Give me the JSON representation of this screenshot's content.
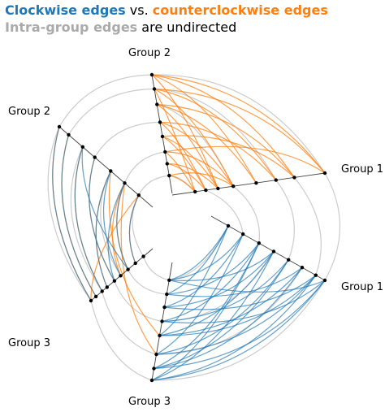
{
  "title": {
    "line1": {
      "clockwise": "Clockwise edges",
      "vs": "vs.",
      "counter": "counterclockwise edges"
    },
    "line2": {
      "intra": "Intra-group edges",
      "rest": "are undirected"
    }
  },
  "colors": {
    "clockwise": "#1f77b4",
    "counterclockwise": "#ff7f0e",
    "intra": "#aaaaaa",
    "axis": "#000000"
  },
  "chart_data": {
    "type": "hive plot",
    "axes": [
      {
        "id": "g1a",
        "label": "Group 1"
      },
      {
        "id": "g1b",
        "label": "Group 1"
      },
      {
        "id": "g2a",
        "label": "Group 2"
      },
      {
        "id": "g2b",
        "label": "Group 2"
      },
      {
        "id": "g3a",
        "label": "Group 3"
      },
      {
        "id": "g3b",
        "label": "Group 3"
      }
    ],
    "nodes_per_axis": {
      "g1a": [
        0.15,
        0.22,
        0.3,
        0.4,
        0.55,
        0.68,
        0.8,
        1.0
      ],
      "g1b": [
        0.15,
        0.28,
        0.42,
        0.55,
        0.68,
        0.8,
        0.92,
        1.0
      ],
      "g2a": [
        0.15,
        0.25,
        0.35,
        0.48,
        0.6,
        0.75,
        0.88,
        1.0
      ],
      "g2b": [
        0.15,
        0.3,
        0.45,
        0.62,
        0.75,
        0.9,
        1.0
      ],
      "g3a": [
        0.15,
        0.28,
        0.4,
        0.52,
        0.62,
        0.74,
        0.82,
        0.92,
        1.0
      ],
      "g3b": [
        0.15,
        0.27,
        0.38,
        0.5,
        0.62,
        0.78,
        0.9,
        1.0
      ]
    },
    "edges": {
      "counterclockwise": [
        [
          "g2a",
          7,
          "g1a",
          7
        ],
        [
          "g2a",
          7,
          "g1a",
          6
        ],
        [
          "g2a",
          6,
          "g1a",
          7
        ],
        [
          "g2a",
          6,
          "g1a",
          5
        ],
        [
          "g2a",
          5,
          "g1a",
          6
        ],
        [
          "g2a",
          5,
          "g1a",
          4
        ],
        [
          "g2a",
          4,
          "g1a",
          3
        ],
        [
          "g2a",
          4,
          "g1a",
          5
        ],
        [
          "g2a",
          3,
          "g1a",
          2
        ],
        [
          "g2a",
          3,
          "g1a",
          1
        ],
        [
          "g2a",
          2,
          "g1a",
          0
        ],
        [
          "g2a",
          1,
          "g1a",
          1
        ],
        [
          "g2a",
          0,
          "g1a",
          0
        ],
        [
          "g2a",
          7,
          "g1a",
          4
        ],
        [
          "g2a",
          6,
          "g1a",
          3
        ],
        [
          "g2a",
          5,
          "g1a",
          2
        ],
        [
          "g2a",
          4,
          "g1a",
          1
        ],
        [
          "g2a",
          2,
          "g1a",
          3
        ],
        [
          "g2a",
          1,
          "g1a",
          2
        ],
        [
          "g2a",
          0,
          "g1a",
          3
        ],
        [
          "g2a",
          7,
          "g1a",
          2
        ],
        [
          "g2a",
          3,
          "g1a",
          6
        ],
        [
          "g2a",
          6,
          "g1a",
          0
        ],
        [
          "g2a",
          2,
          "g1a",
          7
        ],
        [
          "g3a",
          8,
          "g2b",
          6
        ],
        [
          "g3a",
          7,
          "g2b",
          5
        ],
        [
          "g3a",
          6,
          "g2b",
          4
        ],
        [
          "g3a",
          5,
          "g2b",
          2
        ],
        [
          "g3a",
          4,
          "g2b",
          3
        ],
        [
          "g3a",
          3,
          "g2b",
          1
        ],
        [
          "g3a",
          8,
          "g2b",
          0
        ],
        [
          "g3a",
          2,
          "g2b",
          1
        ],
        [
          "g3b",
          4,
          "g2b",
          2
        ],
        [
          "g3a",
          1,
          "g2b",
          0
        ],
        [
          "g3b",
          5,
          "g2b",
          1
        ]
      ],
      "clockwise": [
        [
          "g1b",
          7,
          "g3b",
          7
        ],
        [
          "g1b",
          7,
          "g3b",
          6
        ],
        [
          "g1b",
          6,
          "g3b",
          7
        ],
        [
          "g1b",
          6,
          "g3b",
          5
        ],
        [
          "g1b",
          5,
          "g3b",
          6
        ],
        [
          "g1b",
          5,
          "g3b",
          4
        ],
        [
          "g1b",
          4,
          "g3b",
          5
        ],
        [
          "g1b",
          4,
          "g3b",
          3
        ],
        [
          "g1b",
          3,
          "g3b",
          4
        ],
        [
          "g1b",
          3,
          "g3b",
          2
        ],
        [
          "g1b",
          2,
          "g3b",
          3
        ],
        [
          "g1b",
          2,
          "g3b",
          1
        ],
        [
          "g1b",
          1,
          "g3b",
          2
        ],
        [
          "g1b",
          1,
          "g3b",
          0
        ],
        [
          "g1b",
          0,
          "g3b",
          1
        ],
        [
          "g1b",
          0,
          "g3b",
          0
        ],
        [
          "g1b",
          7,
          "g3b",
          3
        ],
        [
          "g1b",
          6,
          "g3b",
          2
        ],
        [
          "g1b",
          5,
          "g3b",
          1
        ],
        [
          "g1b",
          4,
          "g3b",
          6
        ],
        [
          "g1b",
          3,
          "g3b",
          7
        ],
        [
          "g1b",
          2,
          "g3b",
          6
        ],
        [
          "g1b",
          1,
          "g3b",
          5
        ],
        [
          "g1b",
          0,
          "g3b",
          4
        ],
        [
          "g1b",
          7,
          "g3b",
          0
        ],
        [
          "g1b",
          6,
          "g3b",
          4
        ],
        [
          "g1b",
          3,
          "g3b",
          0
        ],
        [
          "g1b",
          2,
          "g3b",
          7
        ],
        [
          "g2b",
          6,
          "g3a",
          8
        ],
        [
          "g2b",
          5,
          "g3a",
          7
        ],
        [
          "g2b",
          4,
          "g3a",
          6
        ],
        [
          "g2b",
          3,
          "g3a",
          4
        ],
        [
          "g2b",
          2,
          "g3a",
          3
        ],
        [
          "g2b",
          1,
          "g3a",
          2
        ],
        [
          "g2b",
          0,
          "g3a",
          1
        ],
        [
          "g2b",
          4,
          "g3a",
          2
        ],
        [
          "g2b",
          2,
          "g3a",
          5
        ],
        [
          "g2b",
          1,
          "g3a",
          4
        ]
      ],
      "intra": [
        [
          "g1a",
          7,
          "g1b",
          7
        ],
        [
          "g1a",
          6,
          "g1b",
          6
        ],
        [
          "g1a",
          5,
          "g1b",
          4
        ],
        [
          "g1a",
          3,
          "g1b",
          2
        ],
        [
          "g1a",
          1,
          "g1b",
          1
        ],
        [
          "g2a",
          7,
          "g2b",
          6
        ],
        [
          "g2a",
          6,
          "g2b",
          5
        ],
        [
          "g2a",
          4,
          "g2b",
          3
        ],
        [
          "g2a",
          2,
          "g2b",
          1
        ],
        [
          "g2a",
          0,
          "g2b",
          0
        ],
        [
          "g3a",
          8,
          "g3b",
          7
        ],
        [
          "g3a",
          6,
          "g3b",
          5
        ],
        [
          "g3a",
          4,
          "g3b",
          3
        ],
        [
          "g3a",
          2,
          "g3b",
          1
        ],
        [
          "g3a",
          0,
          "g3b",
          0
        ],
        [
          "g1a",
          7,
          "g2a",
          7
        ],
        [
          "g1b",
          7,
          "g3b",
          7
        ],
        [
          "g2b",
          6,
          "g3a",
          8
        ],
        [
          "g1a",
          5,
          "g2a",
          6
        ],
        [
          "g2b",
          4,
          "g3a",
          6
        ],
        [
          "g1b",
          5,
          "g3b",
          5
        ],
        [
          "g1a",
          3,
          "g2a",
          5
        ],
        [
          "g2b",
          2,
          "g3a",
          3
        ],
        [
          "g1b",
          3,
          "g3b",
          3
        ],
        [
          "g1a",
          0,
          "g2a",
          0
        ],
        [
          "g2b",
          0,
          "g3a",
          0
        ],
        [
          "g1b",
          0,
          "g3b",
          0
        ]
      ]
    }
  }
}
